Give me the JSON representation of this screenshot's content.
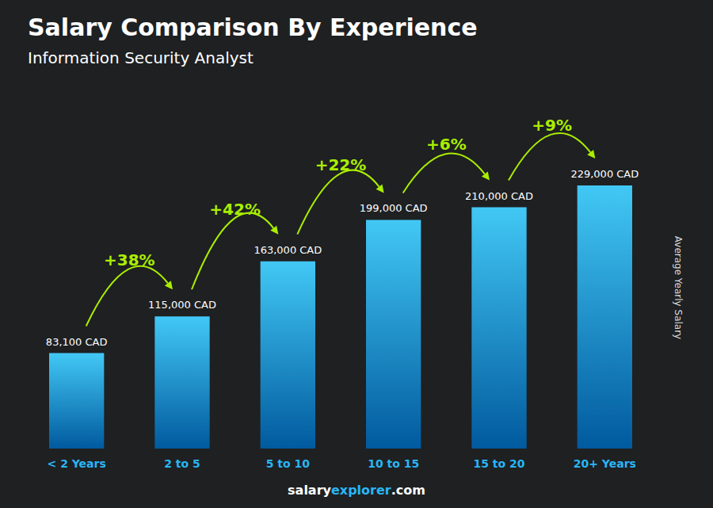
{
  "chart_data": {
    "type": "bar",
    "title": "Salary Comparison By Experience",
    "subtitle": "Information Security Analyst",
    "categories": [
      "< 2 Years",
      "2 to 5",
      "5 to 10",
      "10 to 15",
      "15 to 20",
      "20+ Years"
    ],
    "values": [
      83100,
      115000,
      163000,
      199000,
      210000,
      229000
    ],
    "value_labels": [
      "83,100 CAD",
      "115,000 CAD",
      "163,000 CAD",
      "199,000 CAD",
      "210,000 CAD",
      "229,000 CAD"
    ],
    "data_labels": true,
    "annotations": [
      "+38%",
      "+42%",
      "+22%",
      "+6%",
      "+9%"
    ],
    "ylabel": "Average Yearly Salary",
    "footer": [
      "salary",
      "explorer",
      ".com"
    ],
    "color": "#42c8f5",
    "ylim": [
      0,
      280000
    ],
    "tick_labels": "x",
    "grid": false
  }
}
